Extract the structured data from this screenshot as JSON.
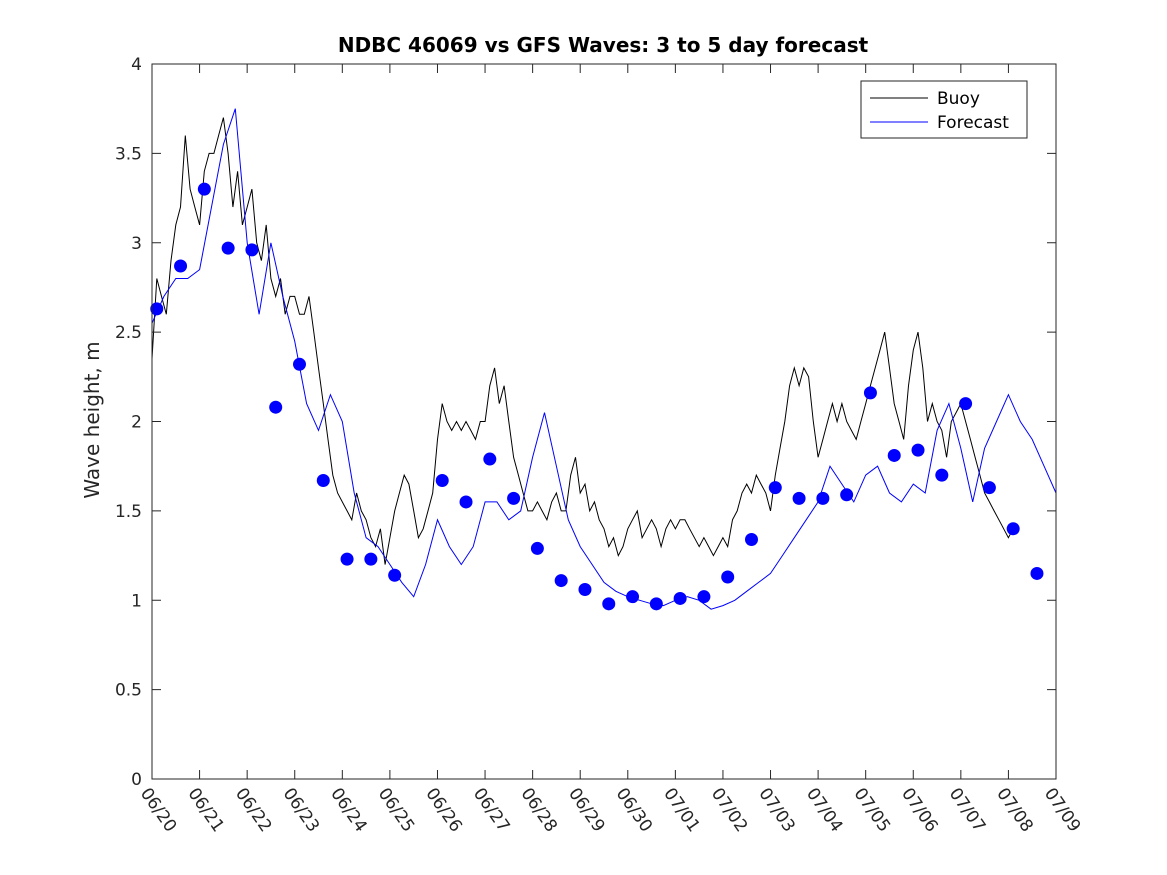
{
  "chart_data": {
    "type": "line",
    "title": "NDBC 46069 vs GFS Waves: 3 to 5 day forecast",
    "xlabel": "",
    "ylabel": "Wave height, m",
    "xlim": [
      0,
      19
    ],
    "ylim": [
      0,
      4
    ],
    "x_ticks": [
      "06/20",
      "06/21",
      "06/22",
      "06/23",
      "06/24",
      "06/25",
      "06/26",
      "06/27",
      "06/28",
      "06/29",
      "06/30",
      "07/01",
      "07/02",
      "07/03",
      "07/04",
      "07/05",
      "07/06",
      "07/07",
      "07/08",
      "07/09"
    ],
    "y_ticks": [
      "0",
      "0.5",
      "1",
      "1.5",
      "2",
      "2.5",
      "3",
      "3.5",
      "4"
    ],
    "legend": {
      "position": "top-right",
      "entries": [
        {
          "label": "Buoy",
          "color": "#000000"
        },
        {
          "label": "Forecast",
          "color": "#0000ff"
        }
      ]
    },
    "grid": false,
    "series": [
      {
        "name": "Buoy",
        "color": "#000000",
        "x": [
          0,
          0.1,
          0.2,
          0.3,
          0.4,
          0.5,
          0.6,
          0.7,
          0.8,
          0.9,
          1.0,
          1.1,
          1.2,
          1.3,
          1.4,
          1.5,
          1.6,
          1.7,
          1.8,
          1.9,
          2.0,
          2.1,
          2.2,
          2.3,
          2.4,
          2.5,
          2.6,
          2.7,
          2.8,
          2.9,
          3.0,
          3.1,
          3.2,
          3.3,
          3.4,
          3.5,
          3.6,
          3.7,
          3.8,
          3.9,
          4.0,
          4.1,
          4.2,
          4.3,
          4.4,
          4.5,
          4.6,
          4.7,
          4.8,
          4.9,
          5.0,
          5.1,
          5.2,
          5.3,
          5.4,
          5.5,
          5.6,
          5.7,
          5.8,
          5.9,
          6.0,
          6.1,
          6.2,
          6.3,
          6.4,
          6.5,
          6.6,
          6.7,
          6.8,
          6.9,
          7.0,
          7.1,
          7.2,
          7.3,
          7.4,
          7.5,
          7.6,
          7.7,
          7.8,
          7.9,
          8.0,
          8.1,
          8.2,
          8.3,
          8.4,
          8.5,
          8.6,
          8.7,
          8.8,
          8.9,
          9.0,
          9.1,
          9.2,
          9.3,
          9.4,
          9.5,
          9.6,
          9.7,
          9.8,
          9.9,
          10.0,
          10.1,
          10.2,
          10.3,
          10.4,
          10.5,
          10.6,
          10.7,
          10.8,
          10.9,
          11.0,
          11.1,
          11.2,
          11.3,
          11.4,
          11.5,
          11.6,
          11.7,
          11.8,
          11.9,
          12.0,
          12.1,
          12.2,
          12.3,
          12.4,
          12.5,
          12.6,
          12.7,
          12.8,
          12.9,
          13.0,
          13.1,
          13.2,
          13.3,
          13.4,
          13.5,
          13.6,
          13.7,
          13.8,
          13.9,
          14.0,
          14.1,
          14.2,
          14.3,
          14.4,
          14.5,
          14.6,
          14.7,
          14.8,
          14.9,
          15.0,
          15.1,
          15.2,
          15.3,
          15.4,
          15.5,
          15.6,
          15.7,
          15.8,
          15.9,
          16.0,
          16.1,
          16.2,
          16.3,
          16.4,
          16.5,
          16.6,
          16.7,
          16.8,
          16.9,
          17.0,
          17.1,
          17.2,
          17.3,
          17.4,
          17.5,
          17.6,
          17.7,
          17.8,
          17.9,
          18.0,
          18.1
        ],
        "y": [
          2.35,
          2.8,
          2.7,
          2.6,
          2.9,
          3.1,
          3.2,
          3.6,
          3.3,
          3.2,
          3.1,
          3.4,
          3.5,
          3.5,
          3.6,
          3.7,
          3.5,
          3.2,
          3.4,
          3.1,
          3.2,
          3.3,
          3.0,
          2.9,
          3.1,
          2.8,
          2.7,
          2.8,
          2.6,
          2.7,
          2.7,
          2.6,
          2.6,
          2.7,
          2.5,
          2.3,
          2.1,
          1.9,
          1.7,
          1.6,
          1.55,
          1.5,
          1.45,
          1.6,
          1.5,
          1.45,
          1.35,
          1.3,
          1.4,
          1.2,
          1.35,
          1.5,
          1.6,
          1.7,
          1.65,
          1.5,
          1.35,
          1.4,
          1.5,
          1.6,
          1.9,
          2.1,
          2.0,
          1.95,
          2.0,
          1.95,
          2.0,
          1.95,
          1.9,
          2.0,
          2.0,
          2.2,
          2.3,
          2.1,
          2.2,
          2.0,
          1.8,
          1.7,
          1.6,
          1.5,
          1.5,
          1.55,
          1.5,
          1.45,
          1.55,
          1.6,
          1.5,
          1.5,
          1.7,
          1.8,
          1.6,
          1.65,
          1.5,
          1.55,
          1.45,
          1.4,
          1.3,
          1.35,
          1.25,
          1.3,
          1.4,
          1.45,
          1.5,
          1.35,
          1.4,
          1.45,
          1.4,
          1.3,
          1.4,
          1.45,
          1.4,
          1.45,
          1.45,
          1.4,
          1.35,
          1.3,
          1.35,
          1.3,
          1.25,
          1.3,
          1.35,
          1.3,
          1.45,
          1.5,
          1.6,
          1.65,
          1.6,
          1.7,
          1.65,
          1.6,
          1.5,
          1.7,
          1.85,
          2.0,
          2.2,
          2.3,
          2.2,
          2.3,
          2.25,
          2.0,
          1.8,
          1.9,
          2.0,
          2.1,
          2.0,
          2.1,
          2.0,
          1.95,
          1.9,
          2.0,
          2.1,
          2.2,
          2.3,
          2.4,
          2.5,
          2.3,
          2.1,
          2.0,
          1.9,
          2.2,
          2.4,
          2.5,
          2.3,
          2.0,
          2.1,
          2.0,
          1.95,
          1.8,
          2.0,
          2.05,
          2.1,
          2.0,
          1.9,
          1.8,
          1.7,
          1.6,
          1.55,
          1.5,
          1.45,
          1.4,
          1.35,
          1.4
        ]
      },
      {
        "name": "Forecast",
        "color": "#0000ff",
        "x": [
          0,
          0.25,
          0.5,
          0.75,
          1.0,
          1.25,
          1.5,
          1.75,
          2.0,
          2.25,
          2.5,
          2.75,
          3.0,
          3.25,
          3.5,
          3.75,
          4.0,
          4.25,
          4.5,
          4.75,
          5.0,
          5.25,
          5.5,
          5.75,
          6.0,
          6.25,
          6.5,
          6.75,
          7.0,
          7.25,
          7.5,
          7.75,
          8.0,
          8.25,
          8.5,
          8.75,
          9.0,
          9.25,
          9.5,
          9.75,
          10.0,
          10.25,
          10.5,
          10.75,
          11.0,
          11.25,
          11.5,
          11.75,
          12.0,
          12.25,
          12.5,
          12.75,
          13.0,
          13.25,
          13.5,
          13.75,
          14.0,
          14.25,
          14.5,
          14.75,
          15.0,
          15.25,
          15.5,
          15.75,
          16.0,
          16.25,
          16.5,
          16.75,
          17.0,
          17.25,
          17.5,
          17.75,
          18.0,
          18.25,
          18.5,
          18.75,
          19.0
        ],
        "y": [
          2.55,
          2.7,
          2.8,
          2.8,
          2.85,
          3.2,
          3.55,
          3.75,
          3.0,
          2.6,
          3.0,
          2.7,
          2.45,
          2.1,
          1.95,
          2.15,
          2.0,
          1.6,
          1.35,
          1.3,
          1.2,
          1.1,
          1.02,
          1.2,
          1.45,
          1.3,
          1.2,
          1.3,
          1.55,
          1.55,
          1.45,
          1.5,
          1.8,
          2.05,
          1.75,
          1.45,
          1.3,
          1.2,
          1.1,
          1.05,
          1.02,
          1.0,
          0.98,
          0.97,
          1.0,
          1.02,
          1.0,
          0.95,
          0.97,
          1.0,
          1.05,
          1.1,
          1.15,
          1.25,
          1.35,
          1.45,
          1.55,
          1.75,
          1.65,
          1.55,
          1.7,
          1.75,
          1.6,
          1.55,
          1.65,
          1.6,
          1.95,
          2.1,
          1.85,
          1.55,
          1.85,
          2.0,
          2.15,
          2.0,
          1.9,
          1.75,
          1.6
        ]
      }
    ],
    "markers": {
      "name": "Forecast",
      "color": "#0000ff",
      "x": [
        0.1,
        0.6,
        1.1,
        1.6,
        2.1,
        2.6,
        3.1,
        3.6,
        4.1,
        4.6,
        5.1,
        6.1,
        6.6,
        7.1,
        7.6,
        8.1,
        8.6,
        9.1,
        9.6,
        10.1,
        10.6,
        11.1,
        11.6,
        12.1,
        12.6,
        13.1,
        13.6,
        14.1,
        14.6,
        15.1,
        15.6,
        16.1,
        16.6,
        17.1,
        17.6,
        18.1,
        18.6
      ],
      "y": [
        2.63,
        2.87,
        3.3,
        2.97,
        2.96,
        2.08,
        2.32,
        1.67,
        1.23,
        1.23,
        1.14,
        1.67,
        1.55,
        1.79,
        1.57,
        1.29,
        1.11,
        1.06,
        0.98,
        1.02,
        0.98,
        1.01,
        1.02,
        1.13,
        1.34,
        1.63,
        1.57,
        1.57,
        1.59,
        2.16,
        1.81,
        1.84,
        1.7,
        2.1,
        1.63,
        1.4,
        1.15
      ]
    }
  }
}
